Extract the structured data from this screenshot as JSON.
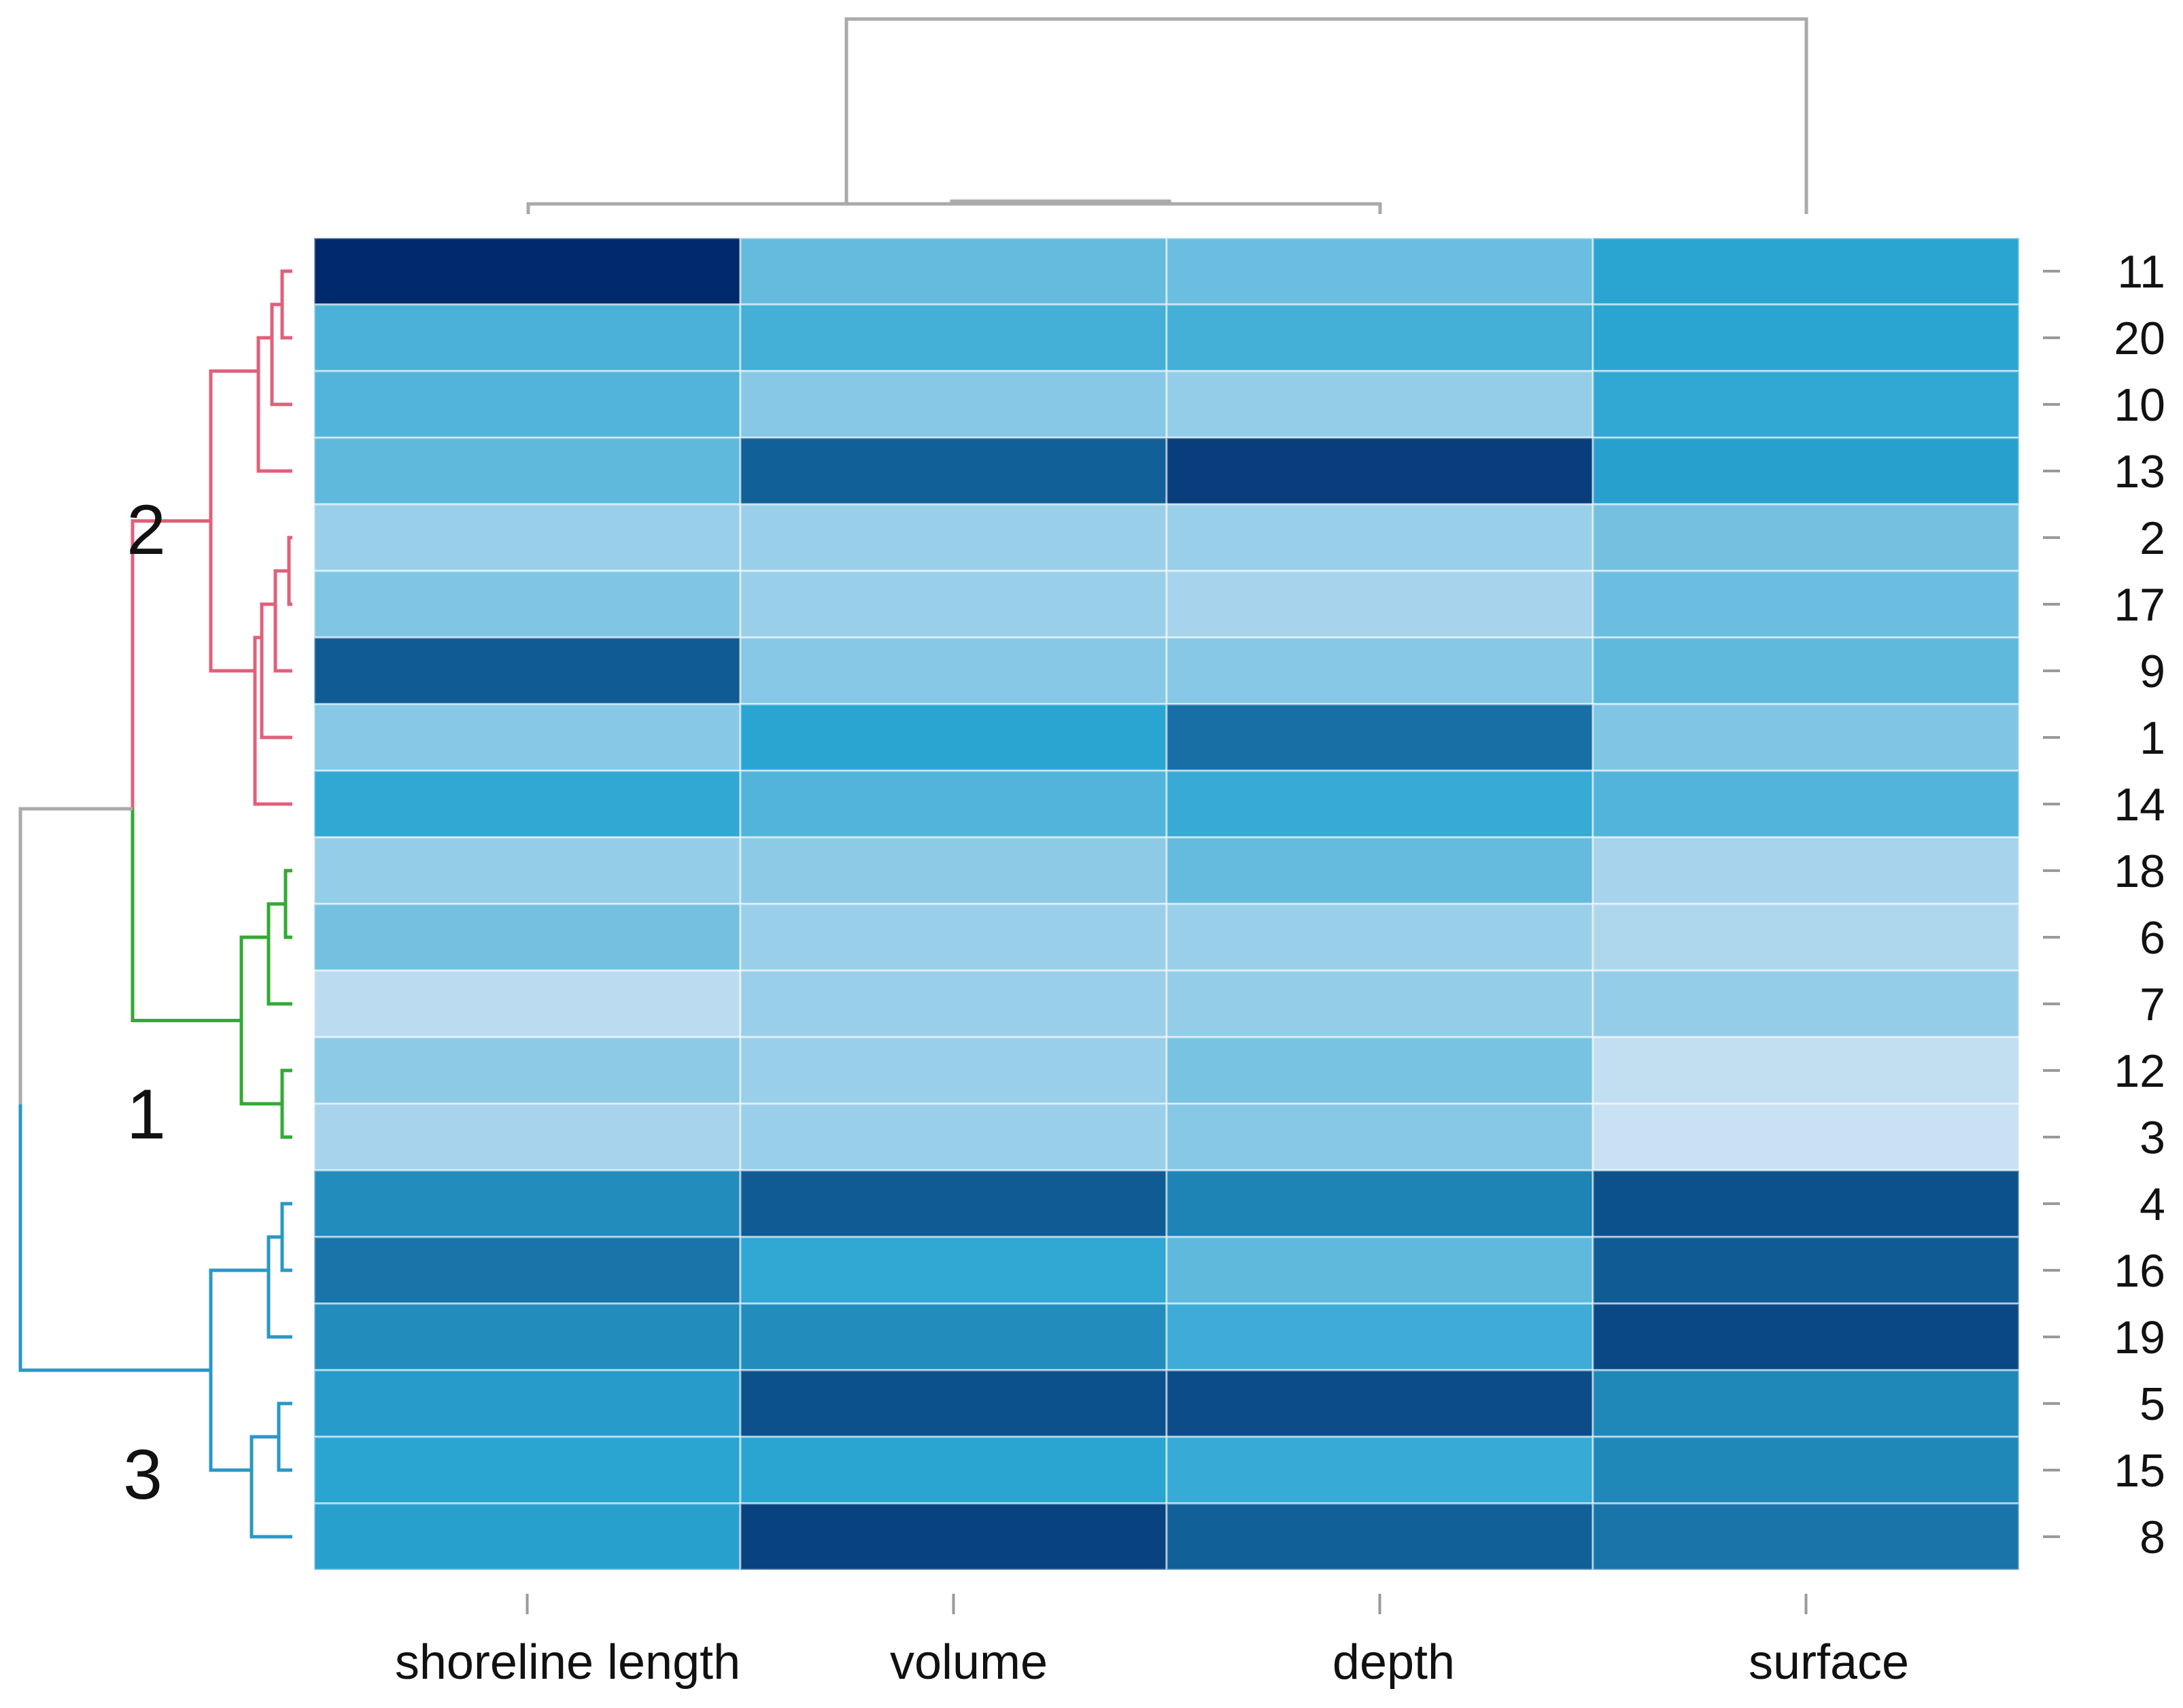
{
  "chart_data": {
    "type": "heatmap",
    "title": "",
    "columns": [
      "shoreline length",
      "volume",
      "depth",
      "surface"
    ],
    "rows": [
      "11",
      "20",
      "10",
      "13",
      "2",
      "17",
      "9",
      "1",
      "14",
      "18",
      "6",
      "7",
      "12",
      "3",
      "4",
      "16",
      "19",
      "5",
      "15",
      "8"
    ],
    "values": [
      [
        1.0,
        0.32,
        0.3,
        0.5
      ],
      [
        0.4,
        0.42,
        0.42,
        0.5
      ],
      [
        0.38,
        0.22,
        0.18,
        0.48
      ],
      [
        0.34,
        0.78,
        0.92,
        0.52
      ],
      [
        0.16,
        0.16,
        0.16,
        0.28
      ],
      [
        0.24,
        0.16,
        0.12,
        0.3
      ],
      [
        0.8,
        0.22,
        0.22,
        0.34
      ],
      [
        0.22,
        0.5,
        0.72,
        0.24
      ],
      [
        0.48,
        0.38,
        0.46,
        0.38
      ],
      [
        0.18,
        0.2,
        0.32,
        0.12
      ],
      [
        0.28,
        0.16,
        0.16,
        0.1
      ],
      [
        0.06,
        0.16,
        0.18,
        0.18
      ],
      [
        0.2,
        0.16,
        0.26,
        0.04
      ],
      [
        0.12,
        0.16,
        0.22,
        0.02
      ],
      [
        0.6,
        0.8,
        0.64,
        0.84
      ],
      [
        0.7,
        0.48,
        0.34,
        0.8
      ],
      [
        0.6,
        0.6,
        0.44,
        0.88
      ],
      [
        0.54,
        0.84,
        0.86,
        0.62
      ],
      [
        0.5,
        0.5,
        0.46,
        0.62
      ],
      [
        0.52,
        0.9,
        0.78,
        0.7
      ]
    ],
    "colorscale": {
      "low": "#cfe3f4",
      "mid": "#2aa5d2",
      "high": "#002a6b"
    },
    "row_clusters": [
      {
        "label": "2",
        "color": "#e0607a",
        "rows": [
          "11",
          "20",
          "10",
          "13",
          "2",
          "17",
          "9",
          "1",
          "14"
        ]
      },
      {
        "label": "1",
        "color": "#33aa33",
        "rows": [
          "18",
          "6",
          "7",
          "12",
          "3"
        ]
      },
      {
        "label": "3",
        "color": "#2a98c4",
        "rows": [
          "4",
          "16",
          "19",
          "5",
          "15",
          "8"
        ]
      }
    ],
    "dendrogram_color": "#aaaaaa"
  }
}
